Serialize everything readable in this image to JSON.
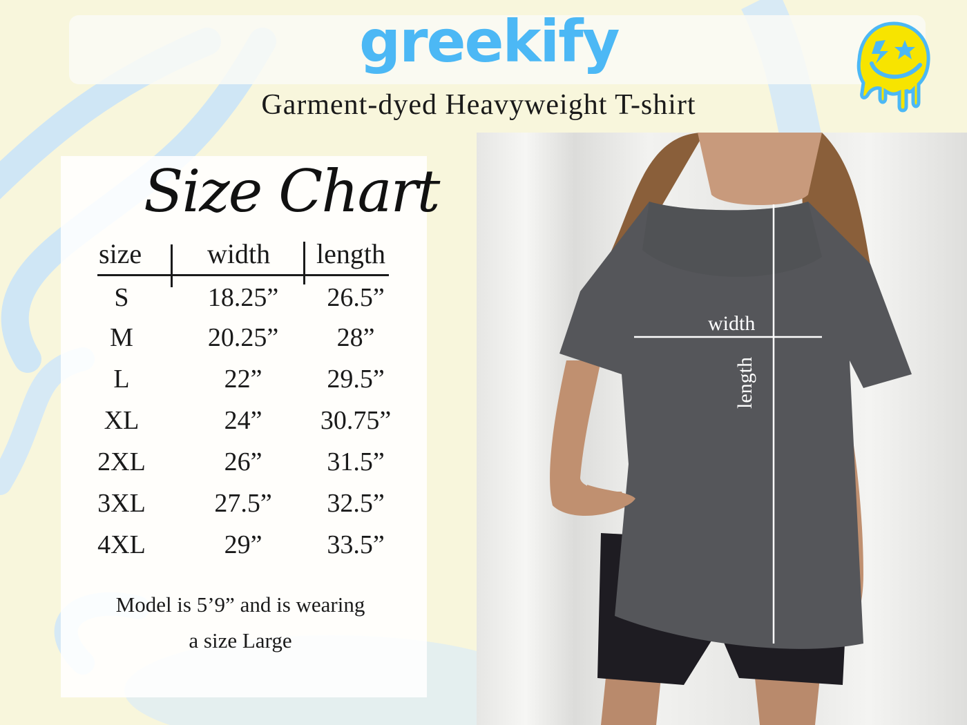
{
  "brand": {
    "logo_text": "greekify",
    "subtitle": "Garment-dyed Heavyweight T-shirt",
    "colors": {
      "brand_blue": "#4cb8f5",
      "smiley_yellow": "#f7e400"
    }
  },
  "icons": {
    "logo_mark": "drippy-smiley-icon"
  },
  "size_chart": {
    "title": "Size Chart",
    "headers": [
      "size",
      "width",
      "length"
    ],
    "rows": [
      [
        "S",
        "18.25”",
        "26.5”"
      ],
      [
        "M",
        "20.25”",
        "28”"
      ],
      [
        "L",
        "22”",
        "29.5”"
      ],
      [
        "XL",
        "24”",
        "30.75”"
      ],
      [
        "2XL",
        "26”",
        "31.5”"
      ],
      [
        "3XL",
        "27.5”",
        "32.5”"
      ],
      [
        "4XL",
        "29”",
        "33.5”"
      ]
    ],
    "note_line1": "Model is 5’9” and is wearing",
    "note_line2": "a size Large"
  },
  "photo": {
    "width_label": "width",
    "length_label": "length"
  }
}
